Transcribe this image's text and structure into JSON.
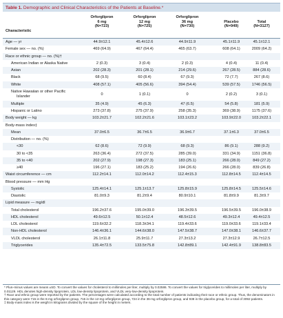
{
  "title": {
    "number": "Table 1.",
    "text": "Demographic and Clinical Characteristics of the Patients at Baseline.*"
  },
  "columns": [
    {
      "l1": "Orforglipron",
      "l2": "6 mg",
      "l3": "(N=723)"
    },
    {
      "l1": "Orforglipron",
      "l2": "12 mg",
      "l3": "(N=725)"
    },
    {
      "l1": "Orforglipron",
      "l2": "36 mg",
      "l3": "(N=730)"
    },
    {
      "l1": "",
      "l2": "Placebo",
      "l3": "(N=949)"
    },
    {
      "l1": "",
      "l2": "Total",
      "l3": "(N=3127)"
    }
  ],
  "characteristic_header": "Characteristic",
  "rows": [
    {
      "label": "Age — yr",
      "indent": 0,
      "v": [
        "44.9±12.1",
        "45.4±12.6",
        "44.9±11.9",
        "45.1±11.9",
        "45.1±12.1"
      ]
    },
    {
      "label": "Female sex — no. (%)",
      "indent": 0,
      "v": [
        "469 (64.9)",
        "467 (64.4)",
        "465 (63.7)",
        "608 (64.1)",
        "2009 (64.2)"
      ]
    },
    {
      "label": "Race or ethnic group — no. (%)†",
      "indent": 0,
      "v": [
        "",
        "",
        "",
        "",
        ""
      ]
    },
    {
      "label": "American Indian or Alaska Native",
      "indent": 1,
      "v": [
        "2 (0.3)",
        "3 (0.4)",
        "2 (0.3)",
        "4 (0.4)",
        "11 (0.4)"
      ]
    },
    {
      "label": "Asian",
      "indent": 1,
      "v": [
        "202 (28.3)",
        "201 (28.1)",
        "214 (29.6)",
        "267 (28.5)",
        "884 (28.6)"
      ]
    },
    {
      "label": "Black",
      "indent": 1,
      "v": [
        "68 (9.5)",
        "60 (8.4)",
        "67 (9.3)",
        "72 (7.7)",
        "267 (8.6)"
      ]
    },
    {
      "label": "White",
      "indent": 1,
      "v": [
        "408 (57.1)",
        "405 (56.6)",
        "394 (54.4)",
        "539 (57.5)",
        "1746 (56.5)"
      ]
    },
    {
      "label": "Native Hawaiian or other Pacific",
      "label2": "Islander",
      "indent": 1,
      "tall": true,
      "v": [
        "0",
        "1 (0.1)",
        "0",
        "2 (0.2)",
        "3 (0.1)"
      ]
    },
    {
      "label": "Multiple",
      "indent": 1,
      "v": [
        "35 (4.9)",
        "45 (6.3)",
        "47 (6.5)",
        "54 (5.8)",
        "181 (5.9)"
      ]
    },
    {
      "label": "Hispanic or Latino",
      "indent": 1,
      "v": [
        "273 (37.8)",
        "275 (37.9)",
        "258 (35.3)",
        "369 (38.9)",
        "1175 (37.6)"
      ]
    },
    {
      "label": "Body weight — kg",
      "indent": 0,
      "v": [
        "103.2±21.7",
        "102.2±21.6",
        "103.1±23.2",
        "103.9±22.0",
        "103.2±22.1"
      ]
    },
    {
      "label": "Body-mass index‡",
      "indent": 0,
      "v": [
        "",
        "",
        "",
        "",
        ""
      ]
    },
    {
      "label": "Mean",
      "indent": 1,
      "v": [
        "37.0±6.5",
        "36.7±6.5",
        "36.9±6.7",
        "37.1±6.3",
        "37.0±6.5"
      ]
    },
    {
      "label": "Distribution — no. (%)",
      "indent": 1,
      "v": [
        "",
        "",
        "",
        "",
        ""
      ]
    },
    {
      "label": "<30",
      "indent": 2,
      "v": [
        "62 (8.6)",
        "72 (9.9)",
        "68 (9.3)",
        "86 (9.1)",
        "288 (9.2)"
      ]
    },
    {
      "label": "30 to <35",
      "indent": 2,
      "v": [
        "263 (36.4)",
        "272 (37.5)",
        "285 (39.0)",
        "331 (34.9)",
        "1151 (36.8)"
      ]
    },
    {
      "label": "35 to <40",
      "indent": 2,
      "v": [
        "202 (27.9)",
        "198 (27.3)",
        "183 (25.1)",
        "266 (28.0)",
        "849 (27.2)"
      ]
    },
    {
      "label": "≥40",
      "indent": 2,
      "v": [
        "196 (27.1)",
        "183 (25.2)",
        "194 (26.6)",
        "266 (28.0)",
        "839 (26.8)"
      ]
    },
    {
      "label": "Waist circumference — cm",
      "indent": 0,
      "v": [
        "112.2±14.1",
        "112.0±14.2",
        "112.4±15.3",
        "112.8±14.5",
        "112.4±14.5"
      ]
    },
    {
      "label": "Blood pressure — mm Hg",
      "indent": 0,
      "v": [
        "",
        "",
        "",
        "",
        ""
      ]
    },
    {
      "label": "Systolic",
      "indent": 1,
      "v": [
        "125.4±14.1",
        "125.1±13.7",
        "125.8±15.9",
        "125.8±14.5",
        "125.5±14.6"
      ]
    },
    {
      "label": "Diastolic",
      "indent": 1,
      "v": [
        "81.0±9.3",
        "81.2±9.4",
        "80.9±10.1",
        "81.8±9.9",
        "81.3±9.7"
      ]
    },
    {
      "label": "Lipid measure — mg/dl",
      "indent": 0,
      "v": [
        "",
        "",
        "",
        "",
        ""
      ]
    },
    {
      "label": "Total cholesterol",
      "indent": 1,
      "v": [
        "196.2±37.6",
        "195.0±39.0",
        "196.3±39.5",
        "196.5±39.5",
        "196.0±38.9"
      ]
    },
    {
      "label": "HDL cholesterol",
      "indent": 1,
      "v": [
        "49.6±12.5",
        "50.1±12.4",
        "48.5±12.6",
        "49.3±12.4",
        "49.4±12.5"
      ]
    },
    {
      "label": "LDL cholesterol",
      "indent": 1,
      "v": [
        "119.6±32.2",
        "118.3±34.1",
        "119.4±33.6",
        "119.0±33.6",
        "119.1±33.4"
      ]
    },
    {
      "label": "Non-HDL cholesterol",
      "indent": 1,
      "v": [
        "146.4±36.1",
        "144.6±38.0",
        "147.5±38.7",
        "147.0±38.1",
        "146.6±37.7"
      ]
    },
    {
      "label": "VLDL cholesterol",
      "indent": 1,
      "v": [
        "26.1±11.8",
        "25.9±11.7",
        "27.3±13.2",
        "27.3±12.9",
        "26.7±12.5"
      ]
    },
    {
      "label": "Triglycerides",
      "indent": 1,
      "v": [
        "135.4±72.5",
        "133.5±75.8",
        "142.8±89.1",
        "142.4±91.9",
        "138.8±83.5"
      ]
    }
  ],
  "footnotes": [
    "* Plus–minus values are means ±SD. To convert the values for cholesterol to millimoles per liter, multiply by 0.02586. To convert the values for triglycerides to millimoles per liter, multiply by 0.01129. HDL denotes high-density lipoprotein, LDL low-density lipoprotein, and VLDL very-low-density lipoprotein.",
    "† Race and ethnic group were reported by the patients. The percentages were calculated according to the total number of patients indicating their race or ethnic group. Thus, the denominators in this category were 715 in the 6-mg orforglipron group, 715 in the 12-mg orforglipron group, 724 in the 36-mg orforglipron group, and 938 in the placebo group, for a total of 3092 patients.",
    "‡ Body-mass index is the weight in kilograms divided by the square of the height in meters."
  ],
  "colors": {
    "title_bg": "#d3e0ec",
    "title_text": "#b22234",
    "row_shade": "#eef3f8",
    "rule": "#7a94aa"
  }
}
